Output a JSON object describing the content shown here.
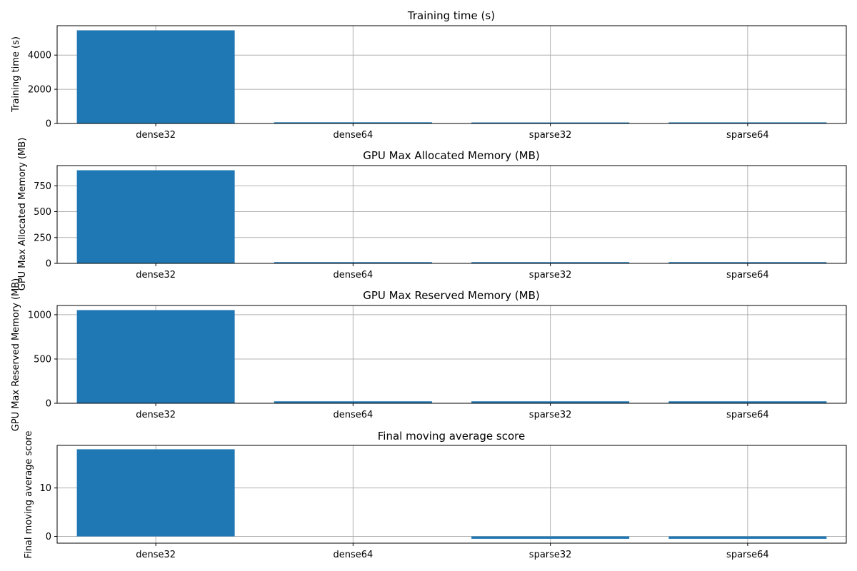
{
  "colors": {
    "bar": "#1f77b4",
    "grid": "#b0b0b0",
    "axis": "#000000",
    "background": "#ffffff"
  },
  "chart_data": [
    {
      "type": "bar",
      "title": "Training time (s)",
      "ylabel": "Training time (s)",
      "xlabel": "",
      "categories": [
        "dense32",
        "dense64",
        "sparse32",
        "sparse64"
      ],
      "values": [
        5450,
        70,
        60,
        65
      ],
      "ylim": [
        0,
        5720
      ],
      "yticks": [
        0,
        2000,
        4000
      ],
      "ytick_labels": [
        "0",
        "2000",
        "4000"
      ],
      "grid": true
    },
    {
      "type": "bar",
      "title": "GPU Max Allocated Memory (MB)",
      "ylabel": "GPU Max Allocated Memory (MB)",
      "xlabel": "",
      "categories": [
        "dense32",
        "dense64",
        "sparse32",
        "sparse64"
      ],
      "values": [
        900,
        12,
        12,
        12
      ],
      "ylim": [
        0,
        945
      ],
      "yticks": [
        0,
        250,
        500,
        750
      ],
      "ytick_labels": [
        "0",
        "250",
        "500",
        "750"
      ],
      "grid": true
    },
    {
      "type": "bar",
      "title": "GPU Max Reserved Memory (MB)",
      "ylabel": "GPU Max Reserved Memory (MB)",
      "xlabel": "",
      "categories": [
        "dense32",
        "dense64",
        "sparse32",
        "sparse64"
      ],
      "values": [
        1052,
        22,
        22,
        22
      ],
      "ylim": [
        0,
        1104
      ],
      "yticks": [
        0,
        500,
        1000
      ],
      "ytick_labels": [
        "0",
        "500",
        "1000"
      ],
      "grid": true
    },
    {
      "type": "bar",
      "title": "Final moving average score",
      "ylabel": "Final moving average score",
      "xlabel": "",
      "categories": [
        "dense32",
        "dense64",
        "sparse32",
        "sparse64"
      ],
      "values": [
        18,
        0,
        -0.5,
        -0.5
      ],
      "ylim": [
        -1.4,
        18.8
      ],
      "yticks": [
        0,
        10
      ],
      "ytick_labels": [
        "0",
        "10"
      ],
      "grid": true
    }
  ]
}
